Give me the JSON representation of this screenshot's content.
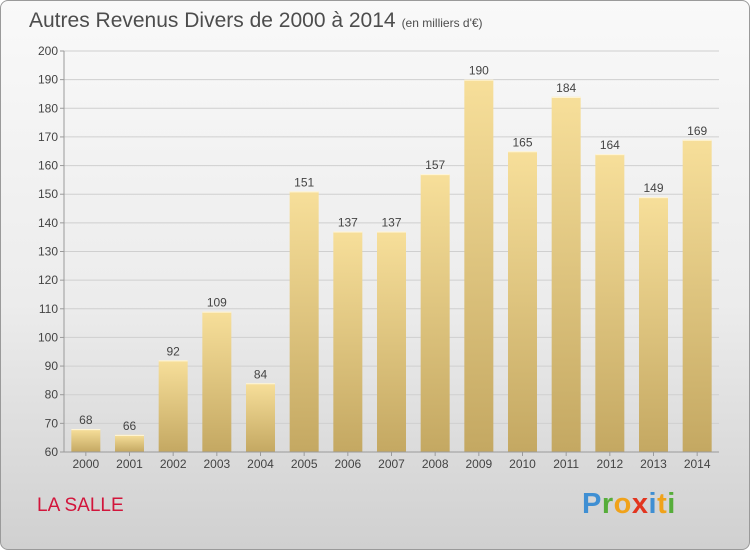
{
  "title": "Autres Revenus Divers de 2000 à 2014",
  "subtitle": "(en milliers d'€)",
  "town": "LA SALLE",
  "brand": {
    "letters": [
      "P",
      "r",
      "o",
      "x",
      "i",
      "t",
      "i"
    ],
    "colors": [
      "#3f8fd3",
      "#56ad3a",
      "#f0a21a",
      "#e2351f",
      "#3f8fd3",
      "#f0a21a",
      "#56ad3a"
    ]
  },
  "colors": {
    "title": "#4d4d4d",
    "town": "#d2153b",
    "bar_light": "#f7df9a",
    "bar_dark": "#c4a862",
    "grid": "#cfcfcf"
  },
  "chart_data": {
    "type": "bar",
    "categories": [
      "2000",
      "2001",
      "2002",
      "2003",
      "2004",
      "2005",
      "2006",
      "2007",
      "2008",
      "2009",
      "2010",
      "2011",
      "2012",
      "2013",
      "2014"
    ],
    "values": [
      68,
      66,
      92,
      109,
      84,
      151,
      137,
      137,
      157,
      190,
      165,
      184,
      164,
      149,
      169
    ],
    "ylim": [
      60,
      200
    ],
    "yticks": [
      60,
      70,
      80,
      90,
      100,
      110,
      120,
      130,
      140,
      150,
      160,
      170,
      180,
      190,
      200
    ],
    "grid": true,
    "data_labels": true
  }
}
